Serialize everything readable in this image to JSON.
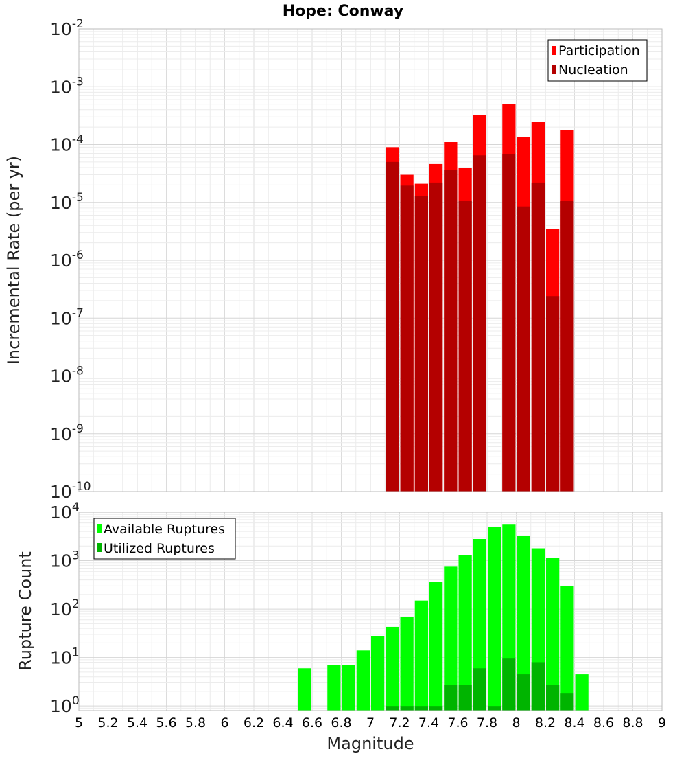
{
  "chart_data": [
    {
      "type": "bar",
      "title": "Hope: Conway",
      "xlabel": "",
      "ylabel": "Incremental Rate (per yr)",
      "yscale": "log",
      "xlim": [
        5,
        9
      ],
      "ylim": [
        1e-10,
        0.01
      ],
      "bar_width": 0.1,
      "grid": true,
      "legend_position": "top-right",
      "y_ticks": [
        {
          "base": "10",
          "exp": "-10",
          "value": 1e-10
        },
        {
          "base": "10",
          "exp": "-9",
          "value": 1e-09
        },
        {
          "base": "10",
          "exp": "-8",
          "value": 1e-08
        },
        {
          "base": "10",
          "exp": "-7",
          "value": 1e-07
        },
        {
          "base": "10",
          "exp": "-6",
          "value": 1e-06
        },
        {
          "base": "10",
          "exp": "-5",
          "value": 1e-05
        },
        {
          "base": "10",
          "exp": "-4",
          "value": 0.0001
        },
        {
          "base": "10",
          "exp": "-3",
          "value": 0.001
        },
        {
          "base": "10",
          "exp": "-2",
          "value": 0.01
        }
      ],
      "series": [
        {
          "name": "Participation",
          "color": "#ff0000",
          "x": [
            7.15,
            7.25,
            7.35,
            7.45,
            7.55,
            7.65,
            7.75,
            7.95,
            8.05,
            8.15,
            8.25,
            8.35
          ],
          "values": [
            9e-05,
            3e-05,
            2.1e-05,
            4.6e-05,
            0.00011,
            3.9e-05,
            0.00032,
            0.0005,
            0.000135,
            0.000245,
            3.5e-06,
            0.00018
          ]
        },
        {
          "name": "Nucleation",
          "color": "#b40000",
          "x": [
            7.15,
            7.25,
            7.35,
            7.45,
            7.55,
            7.65,
            7.75,
            7.95,
            8.05,
            8.15,
            8.25,
            8.35
          ],
          "values": [
            5e-05,
            1.95e-05,
            1.3e-05,
            2.2e-05,
            3.6e-05,
            1.05e-05,
            6.5e-05,
            6.8e-05,
            8.5e-06,
            2.2e-05,
            2.4e-07,
            1.05e-05
          ]
        }
      ]
    },
    {
      "type": "bar",
      "title": "",
      "xlabel": "Magnitude",
      "ylabel": "Rupture Count",
      "yscale": "log",
      "xlim": [
        5,
        9
      ],
      "ylim": [
        0.8,
        10000
      ],
      "bar_width": 0.1,
      "grid": true,
      "legend_position": "top-left",
      "x_ticks": [
        "5",
        "5.2",
        "5.4",
        "5.6",
        "5.8",
        "6",
        "6.2",
        "6.4",
        "6.6",
        "6.8",
        "7",
        "7.2",
        "7.4",
        "7.6",
        "7.8",
        "8",
        "8.2",
        "8.4",
        "8.6",
        "8.8",
        "9"
      ],
      "y_ticks": [
        {
          "base": "10",
          "exp": "0",
          "value": 1
        },
        {
          "base": "10",
          "exp": "1",
          "value": 10
        },
        {
          "base": "10",
          "exp": "2",
          "value": 100
        },
        {
          "base": "10",
          "exp": "3",
          "value": 1000
        },
        {
          "base": "10",
          "exp": "4",
          "value": 10000
        }
      ],
      "series": [
        {
          "name": "Available Ruptures",
          "color": "#00ff00",
          "x": [
            6.55,
            6.75,
            6.85,
            6.95,
            7.05,
            7.15,
            7.25,
            7.35,
            7.45,
            7.55,
            7.65,
            7.75,
            7.85,
            7.95,
            8.05,
            8.15,
            8.25,
            8.35,
            8.45
          ],
          "values": [
            6,
            7,
            7,
            14,
            28,
            43,
            70,
            150,
            360,
            750,
            1300,
            2800,
            5000,
            5700,
            3300,
            1800,
            1150,
            300,
            4.5
          ]
        },
        {
          "name": "Utilized Ruptures",
          "color": "#00b400",
          "x": [
            7.15,
            7.25,
            7.35,
            7.45,
            7.55,
            7.65,
            7.75,
            7.85,
            7.95,
            8.05,
            8.15,
            8.25,
            8.35
          ],
          "values": [
            1,
            1,
            1,
            1,
            2.7,
            2.7,
            6,
            1,
            9.5,
            4.5,
            8,
            2.7,
            1.8
          ]
        }
      ]
    }
  ]
}
